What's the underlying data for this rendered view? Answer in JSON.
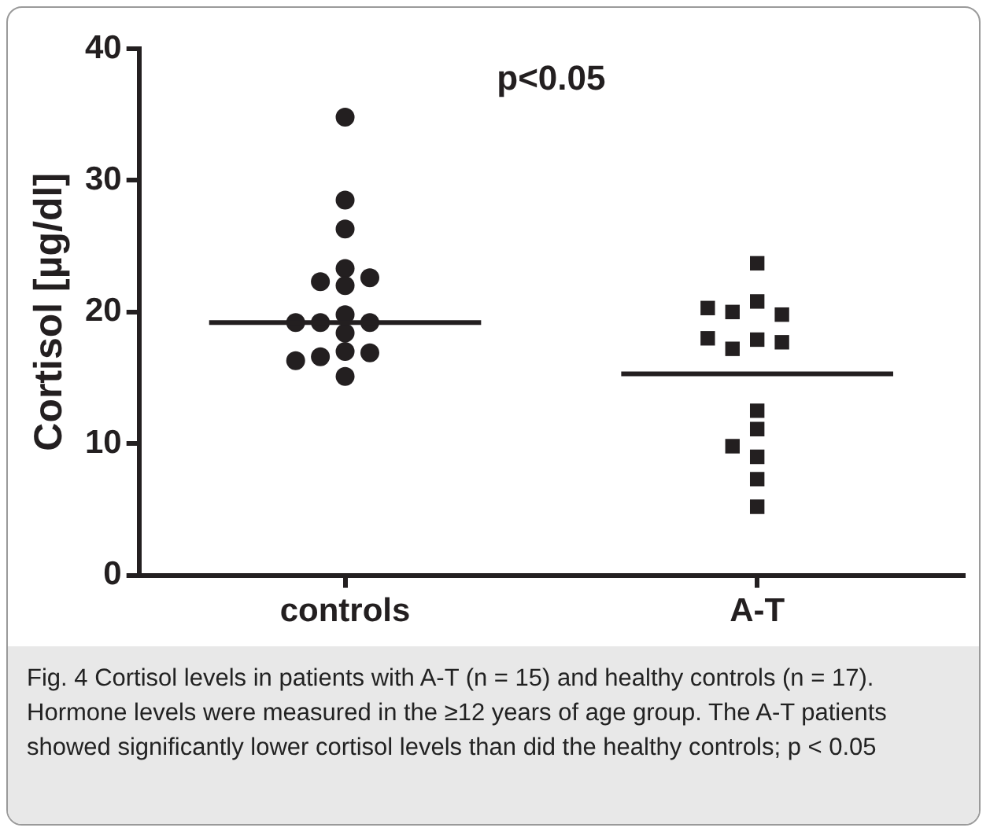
{
  "chart_data": {
    "type": "scatter",
    "ylabel": "Cortisol [µg/dl]",
    "categories": [
      "controls",
      "A-T"
    ],
    "ylim": [
      0,
      40
    ],
    "yticks": [
      0,
      10,
      20,
      30,
      40
    ],
    "grid": false,
    "legend": false,
    "annotations": [
      "p<0.05",
      "Fig. 4 Cortisol levels in patients with A-T (n = 15) and healthy controls (n = 17). Hormone levels were measured in the ≥12 years of age group. The A-T patients showed significantly lower cortisol levels than did the healthy controls; p < 0.05"
    ],
    "series": [
      {
        "marker": "circle",
        "color": "#231f20",
        "x": [
          "controls",
          "controls",
          "controls",
          "controls",
          "controls",
          "controls",
          "controls",
          "controls",
          "controls",
          "controls",
          "controls",
          "controls",
          "controls",
          "controls",
          "controls",
          "controls",
          "controls"
        ],
        "values": [
          34.8,
          28.5,
          26.3,
          23.3,
          22.3,
          22.0,
          22.6,
          19.8,
          19.2,
          19.2,
          19.2,
          18.4,
          17.0,
          16.6,
          16.9,
          16.3,
          15.1
        ]
      },
      {
        "marker": "square",
        "color": "#231f20",
        "x": [
          "A-T",
          "A-T",
          "A-T",
          "A-T",
          "A-T",
          "A-T",
          "A-T",
          "A-T",
          "A-T",
          "A-T",
          "A-T",
          "A-T",
          "A-T",
          "A-T",
          "A-T"
        ],
        "values": [
          23.7,
          20.8,
          20.0,
          19.8,
          20.3,
          17.9,
          17.2,
          17.7,
          18.0,
          12.5,
          11.1,
          9.8,
          9.0,
          7.3,
          5.2
        ]
      }
    ],
    "ref_lines": [
      {
        "axis": "y",
        "value": 19.2,
        "color": "#231f20"
      },
      {
        "axis": "y",
        "value": 15.3,
        "color": "#231f20"
      }
    ]
  }
}
